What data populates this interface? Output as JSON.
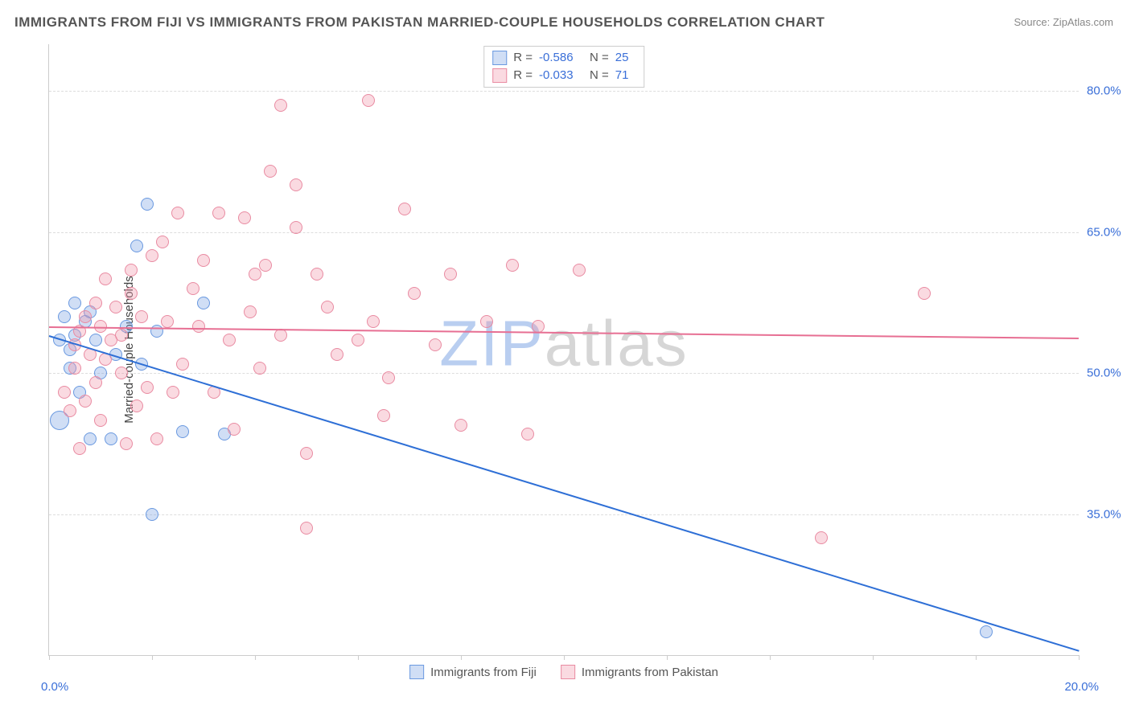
{
  "title": "IMMIGRANTS FROM FIJI VS IMMIGRANTS FROM PAKISTAN MARRIED-COUPLE HOUSEHOLDS CORRELATION CHART",
  "source": "Source: ZipAtlas.com",
  "watermark_text": "ZIPatlas",
  "chart": {
    "type": "scatter",
    "ylabel": "Married-couple Households",
    "xlim": [
      0,
      20
    ],
    "ylim": [
      20,
      85
    ],
    "x_ticks_positions": [
      0,
      2,
      4,
      6,
      8,
      10,
      12,
      14,
      16,
      18,
      20
    ],
    "x_ticks_labeled": {
      "0": "0.0%",
      "20": "20.0%"
    },
    "y_gridlines": [
      35,
      50,
      65,
      80
    ],
    "y_ticks_labeled": {
      "35": "35.0%",
      "50": "50.0%",
      "65": "65.0%",
      "80": "80.0%"
    },
    "background_color": "#ffffff",
    "grid_color": "#dddddd",
    "axis_color": "#cccccc",
    "tick_label_color": "#3a6fd8",
    "ylabel_color": "#444444",
    "marker_radius": 8,
    "marker_border_width": 1.5,
    "watermark_color_left": "#b9cef0",
    "watermark_color_right": "#d6d6d6",
    "series": [
      {
        "name": "Immigrants from Fiji",
        "fill_color": "rgba(120,160,225,0.35)",
        "stroke_color": "#6a99e0",
        "trend_color": "#2e6fd6",
        "trend": {
          "x1": 0,
          "y1": 54.0,
          "x2": 20,
          "y2": 20.5
        },
        "R": "-0.586",
        "N": "25",
        "points": [
          [
            0.2,
            45.0,
            12
          ],
          [
            0.2,
            53.5
          ],
          [
            0.3,
            56.0
          ],
          [
            0.4,
            52.5
          ],
          [
            0.5,
            54.0
          ],
          [
            0.4,
            50.5
          ],
          [
            0.5,
            57.5
          ],
          [
            0.7,
            55.5
          ],
          [
            0.8,
            56.5
          ],
          [
            0.9,
            53.5
          ],
          [
            0.8,
            43.0
          ],
          [
            1.2,
            43.0
          ],
          [
            1.5,
            55.0
          ],
          [
            1.7,
            63.5
          ],
          [
            1.9,
            68.0
          ],
          [
            2.1,
            54.5
          ],
          [
            2.6,
            43.8
          ],
          [
            3.0,
            57.5
          ],
          [
            3.4,
            43.5
          ],
          [
            2.0,
            35.0
          ],
          [
            18.2,
            22.5
          ],
          [
            1.0,
            50.0
          ],
          [
            1.3,
            52.0
          ],
          [
            0.6,
            48.0
          ],
          [
            1.8,
            51.0
          ]
        ]
      },
      {
        "name": "Immigrants from Pakistan",
        "fill_color": "rgba(240,150,170,0.35)",
        "stroke_color": "#e98ba2",
        "trend_color": "#e76f93",
        "trend": {
          "x1": 0,
          "y1": 55.0,
          "x2": 20,
          "y2": 53.8
        },
        "R": "-0.033",
        "N": "71",
        "points": [
          [
            0.3,
            48.0
          ],
          [
            0.4,
            46.0
          ],
          [
            0.5,
            50.5
          ],
          [
            0.5,
            53.0
          ],
          [
            0.6,
            54.5
          ],
          [
            0.7,
            47.0
          ],
          [
            0.8,
            52.0
          ],
          [
            0.9,
            57.5
          ],
          [
            1.0,
            55.0
          ],
          [
            1.0,
            45.0
          ],
          [
            1.1,
            60.0
          ],
          [
            1.2,
            53.5
          ],
          [
            1.3,
            57.0
          ],
          [
            1.4,
            50.0
          ],
          [
            1.5,
            42.5
          ],
          [
            1.6,
            58.5
          ],
          [
            1.8,
            56.0
          ],
          [
            1.9,
            48.5
          ],
          [
            2.0,
            62.5
          ],
          [
            2.2,
            64.0
          ],
          [
            2.3,
            55.5
          ],
          [
            2.5,
            67.0
          ],
          [
            2.6,
            51.0
          ],
          [
            2.8,
            59.0
          ],
          [
            3.0,
            62.0
          ],
          [
            3.2,
            48.0
          ],
          [
            3.3,
            67.0
          ],
          [
            3.5,
            53.5
          ],
          [
            3.8,
            66.5
          ],
          [
            3.9,
            56.5
          ],
          [
            4.0,
            60.5
          ],
          [
            4.2,
            61.5
          ],
          [
            4.3,
            71.5
          ],
          [
            4.5,
            54.0
          ],
          [
            4.5,
            78.5
          ],
          [
            4.8,
            65.5
          ],
          [
            4.8,
            70.0
          ],
          [
            5.0,
            41.5
          ],
          [
            5.2,
            60.5
          ],
          [
            5.0,
            33.5
          ],
          [
            5.6,
            52.0
          ],
          [
            6.0,
            53.5
          ],
          [
            6.2,
            79.0
          ],
          [
            6.3,
            55.5
          ],
          [
            6.6,
            49.5
          ],
          [
            6.9,
            67.5
          ],
          [
            7.1,
            58.5
          ],
          [
            7.5,
            53.0
          ],
          [
            7.8,
            60.5
          ],
          [
            8.0,
            44.5
          ],
          [
            8.5,
            55.5
          ],
          [
            9.0,
            61.5
          ],
          [
            9.3,
            43.5
          ],
          [
            9.5,
            55.0
          ],
          [
            10.3,
            61.0
          ],
          [
            15.0,
            32.5
          ],
          [
            17.0,
            58.5
          ],
          [
            0.6,
            42.0
          ],
          [
            1.7,
            46.5
          ],
          [
            2.1,
            43.0
          ],
          [
            0.9,
            49.0
          ],
          [
            1.1,
            51.5
          ],
          [
            2.4,
            48.0
          ],
          [
            3.6,
            44.0
          ],
          [
            4.1,
            50.5
          ],
          [
            5.4,
            57.0
          ],
          [
            6.5,
            45.5
          ],
          [
            1.4,
            54.0
          ],
          [
            0.7,
            56.0
          ],
          [
            2.9,
            55.0
          ],
          [
            1.6,
            61.0
          ]
        ]
      }
    ],
    "legend_series_order_top": [
      0,
      1
    ],
    "legend_series_order_bottom": [
      0,
      1
    ]
  }
}
